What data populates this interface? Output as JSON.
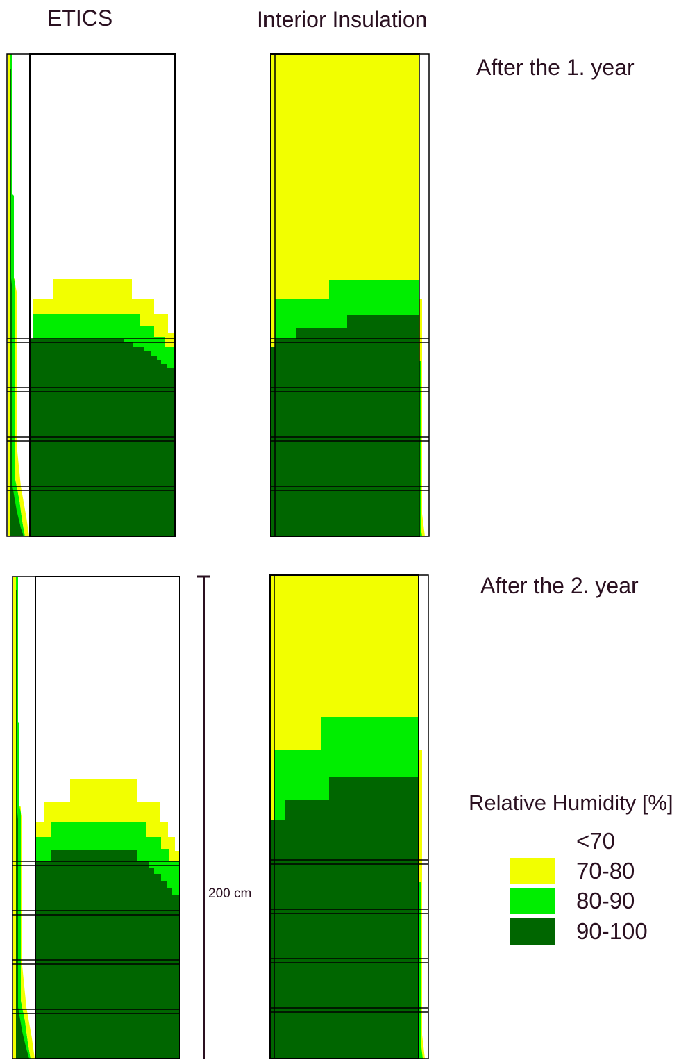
{
  "column_titles": {
    "etics": "ETICS",
    "interior": "Interior Insulation"
  },
  "row_labels": {
    "year1": "After the 1. year",
    "year2": "After the 2. year"
  },
  "scale_bar": {
    "label": "200 cm"
  },
  "legend": {
    "title": "Relative Humidity [%]",
    "entries": [
      {
        "label": "<70",
        "color": "#ffffff"
      },
      {
        "label": "70-80",
        "color": "#f2ff00"
      },
      {
        "label": "80-90",
        "color": "#00ee00"
      },
      {
        "label": "90-100",
        "color": "#006600"
      }
    ]
  },
  "colors": {
    "dry": "#ffffff",
    "yellow": "#f2ff00",
    "light_green": "#00ee00",
    "dark_green": "#006600",
    "outline": "#000000",
    "text": "#2a1020"
  }
}
